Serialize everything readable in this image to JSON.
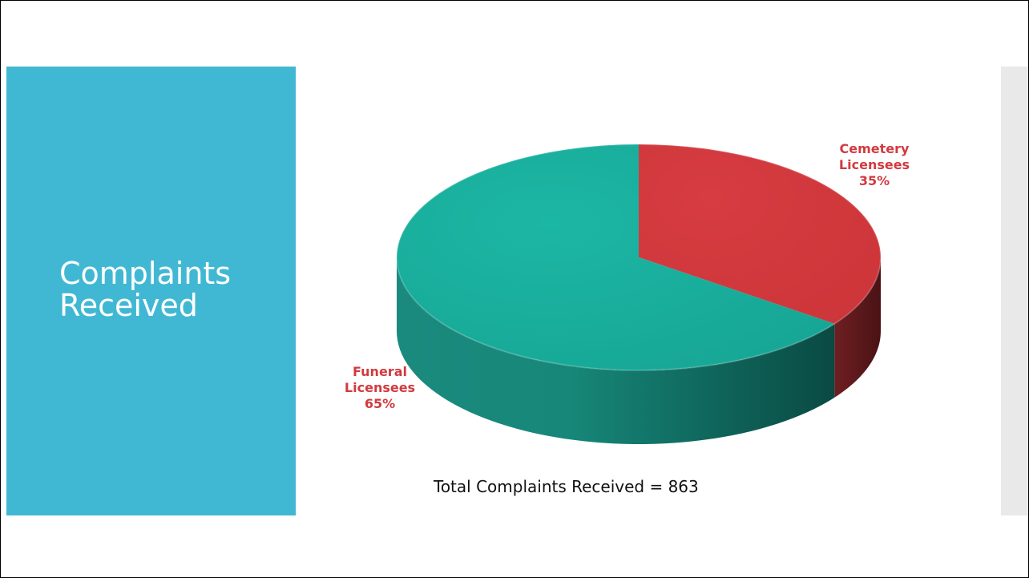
{
  "slide": {
    "title_lines": [
      "Complaints",
      "Received"
    ],
    "total_text": "Total Complaints Received = 863"
  },
  "colors": {
    "title_panel": "#41b8d3",
    "funeral": "#1ab09f",
    "cemetery": "#d33a3f",
    "label": "#d23a3f"
  },
  "chart_data": {
    "type": "pie",
    "style": "3d",
    "slices": [
      {
        "name": "Cemetery Licensees",
        "label_lines": [
          "Cemetery",
          "Licensees"
        ],
        "value": 35,
        "pct_label": "35%"
      },
      {
        "name": "Funeral Licensees",
        "label_lines": [
          "Funeral",
          "Licensees"
        ],
        "value": 65,
        "pct_label": "65%"
      }
    ]
  }
}
